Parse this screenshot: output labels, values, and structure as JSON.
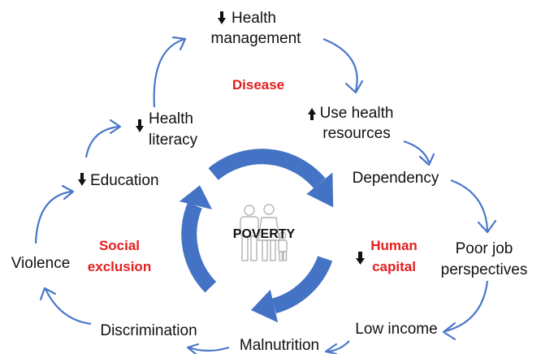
{
  "colors": {
    "accent": "#4472c4",
    "red": "#e31e1e",
    "text": "#111111"
  },
  "center": {
    "label": "POVERTY",
    "icon": "family-icon"
  },
  "sections": {
    "disease": "Disease",
    "social_exclusion": [
      "Social",
      "exclusion"
    ],
    "human_capital": [
      "Human",
      "capital"
    ]
  },
  "nodes": {
    "health_management": {
      "lines": [
        "Health",
        "management"
      ],
      "trend": "down"
    },
    "use_health_resources": {
      "lines": [
        "Use health",
        "resources"
      ],
      "trend": "up"
    },
    "dependency": {
      "lines": [
        "Dependency"
      ],
      "trend": ""
    },
    "poor_job_perspectives": {
      "lines": [
        "Poor job",
        "perspectives"
      ],
      "trend": ""
    },
    "low_income": {
      "lines": [
        "Low income"
      ],
      "trend": ""
    },
    "malnutrition": {
      "lines": [
        "Malnutrition"
      ],
      "trend": ""
    },
    "discrimination": {
      "lines": [
        "Discrimination"
      ],
      "trend": ""
    },
    "violence": {
      "lines": [
        "Violence"
      ],
      "trend": ""
    },
    "education": {
      "lines": [
        "Education"
      ],
      "trend": "down"
    },
    "health_literacy": {
      "lines": [
        "Health",
        "literacy"
      ],
      "trend": "down"
    }
  }
}
